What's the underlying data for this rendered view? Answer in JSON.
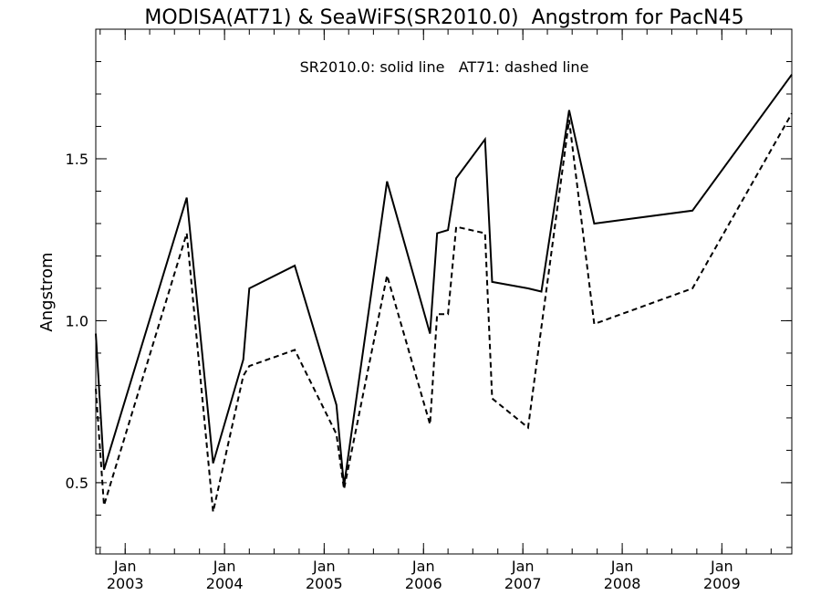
{
  "chart_data": {
    "type": "line",
    "title": "MODISA(AT71) & SeaWiFS(SR2010.0)  Angstrom for PacN45",
    "annotation": "SR2010.0: solid line   AT71: dashed line",
    "xlabel": "",
    "ylabel": "Angstrom",
    "xlim": [
      "2002-09-15",
      "2009-09-15"
    ],
    "ylim": [
      0.28,
      1.9
    ],
    "grid": false,
    "x_ticks": [
      {
        "date": "2003-01-01",
        "month": "Jan",
        "year": "2003"
      },
      {
        "date": "2004-01-01",
        "month": "Jan",
        "year": "2004"
      },
      {
        "date": "2005-01-01",
        "month": "Jan",
        "year": "2005"
      },
      {
        "date": "2006-01-01",
        "month": "Jan",
        "year": "2006"
      },
      {
        "date": "2007-01-01",
        "month": "Jan",
        "year": "2007"
      },
      {
        "date": "2008-01-01",
        "month": "Jan",
        "year": "2008"
      },
      {
        "date": "2009-01-01",
        "month": "Jan",
        "year": "2009"
      }
    ],
    "y_ticks": [
      0.5,
      1.0,
      1.5
    ],
    "y_tick_labels": [
      "0.5",
      "1.0",
      "1.5"
    ],
    "series": [
      {
        "name": "SR2010.0",
        "dash": "solid",
        "color": "#000000",
        "points": [
          [
            "2002-09-15",
            0.96
          ],
          [
            "2002-10-15",
            0.54
          ],
          [
            "2003-08-15",
            1.38
          ],
          [
            "2003-11-20",
            0.56
          ],
          [
            "2004-03-10",
            0.88
          ],
          [
            "2004-04-01",
            1.1
          ],
          [
            "2004-09-15",
            1.17
          ],
          [
            "2005-02-15",
            0.74
          ],
          [
            "2005-03-15",
            0.49
          ],
          [
            "2005-08-20",
            1.43
          ],
          [
            "2006-01-25",
            0.96
          ],
          [
            "2006-02-20",
            1.27
          ],
          [
            "2006-04-01",
            1.28
          ],
          [
            "2006-05-01",
            1.44
          ],
          [
            "2006-08-15",
            1.56
          ],
          [
            "2006-09-10",
            1.12
          ],
          [
            "2007-01-20",
            1.1
          ],
          [
            "2007-03-10",
            1.09
          ],
          [
            "2007-06-20",
            1.65
          ],
          [
            "2007-09-20",
            1.3
          ],
          [
            "2008-09-15",
            1.34
          ],
          [
            "2009-09-15",
            1.76
          ]
        ]
      },
      {
        "name": "AT71",
        "dash": "dashed",
        "color": "#000000",
        "points": [
          [
            "2002-09-15",
            0.79
          ],
          [
            "2002-10-15",
            0.43
          ],
          [
            "2003-08-15",
            1.27
          ],
          [
            "2003-11-20",
            0.41
          ],
          [
            "2004-03-10",
            0.83
          ],
          [
            "2004-04-01",
            0.86
          ],
          [
            "2004-09-15",
            0.91
          ],
          [
            "2005-02-15",
            0.65
          ],
          [
            "2005-03-15",
            0.48
          ],
          [
            "2005-08-20",
            1.14
          ],
          [
            "2006-01-25",
            0.68
          ],
          [
            "2006-02-20",
            1.02
          ],
          [
            "2006-04-01",
            1.02
          ],
          [
            "2006-05-01",
            1.29
          ],
          [
            "2006-08-15",
            1.27
          ],
          [
            "2006-09-10",
            0.76
          ],
          [
            "2007-01-20",
            0.67
          ],
          [
            "2007-03-10",
            0.98
          ],
          [
            "2007-06-20",
            1.62
          ],
          [
            "2007-09-20",
            0.99
          ],
          [
            "2008-09-15",
            1.1
          ],
          [
            "2009-09-15",
            1.64
          ]
        ]
      }
    ]
  }
}
